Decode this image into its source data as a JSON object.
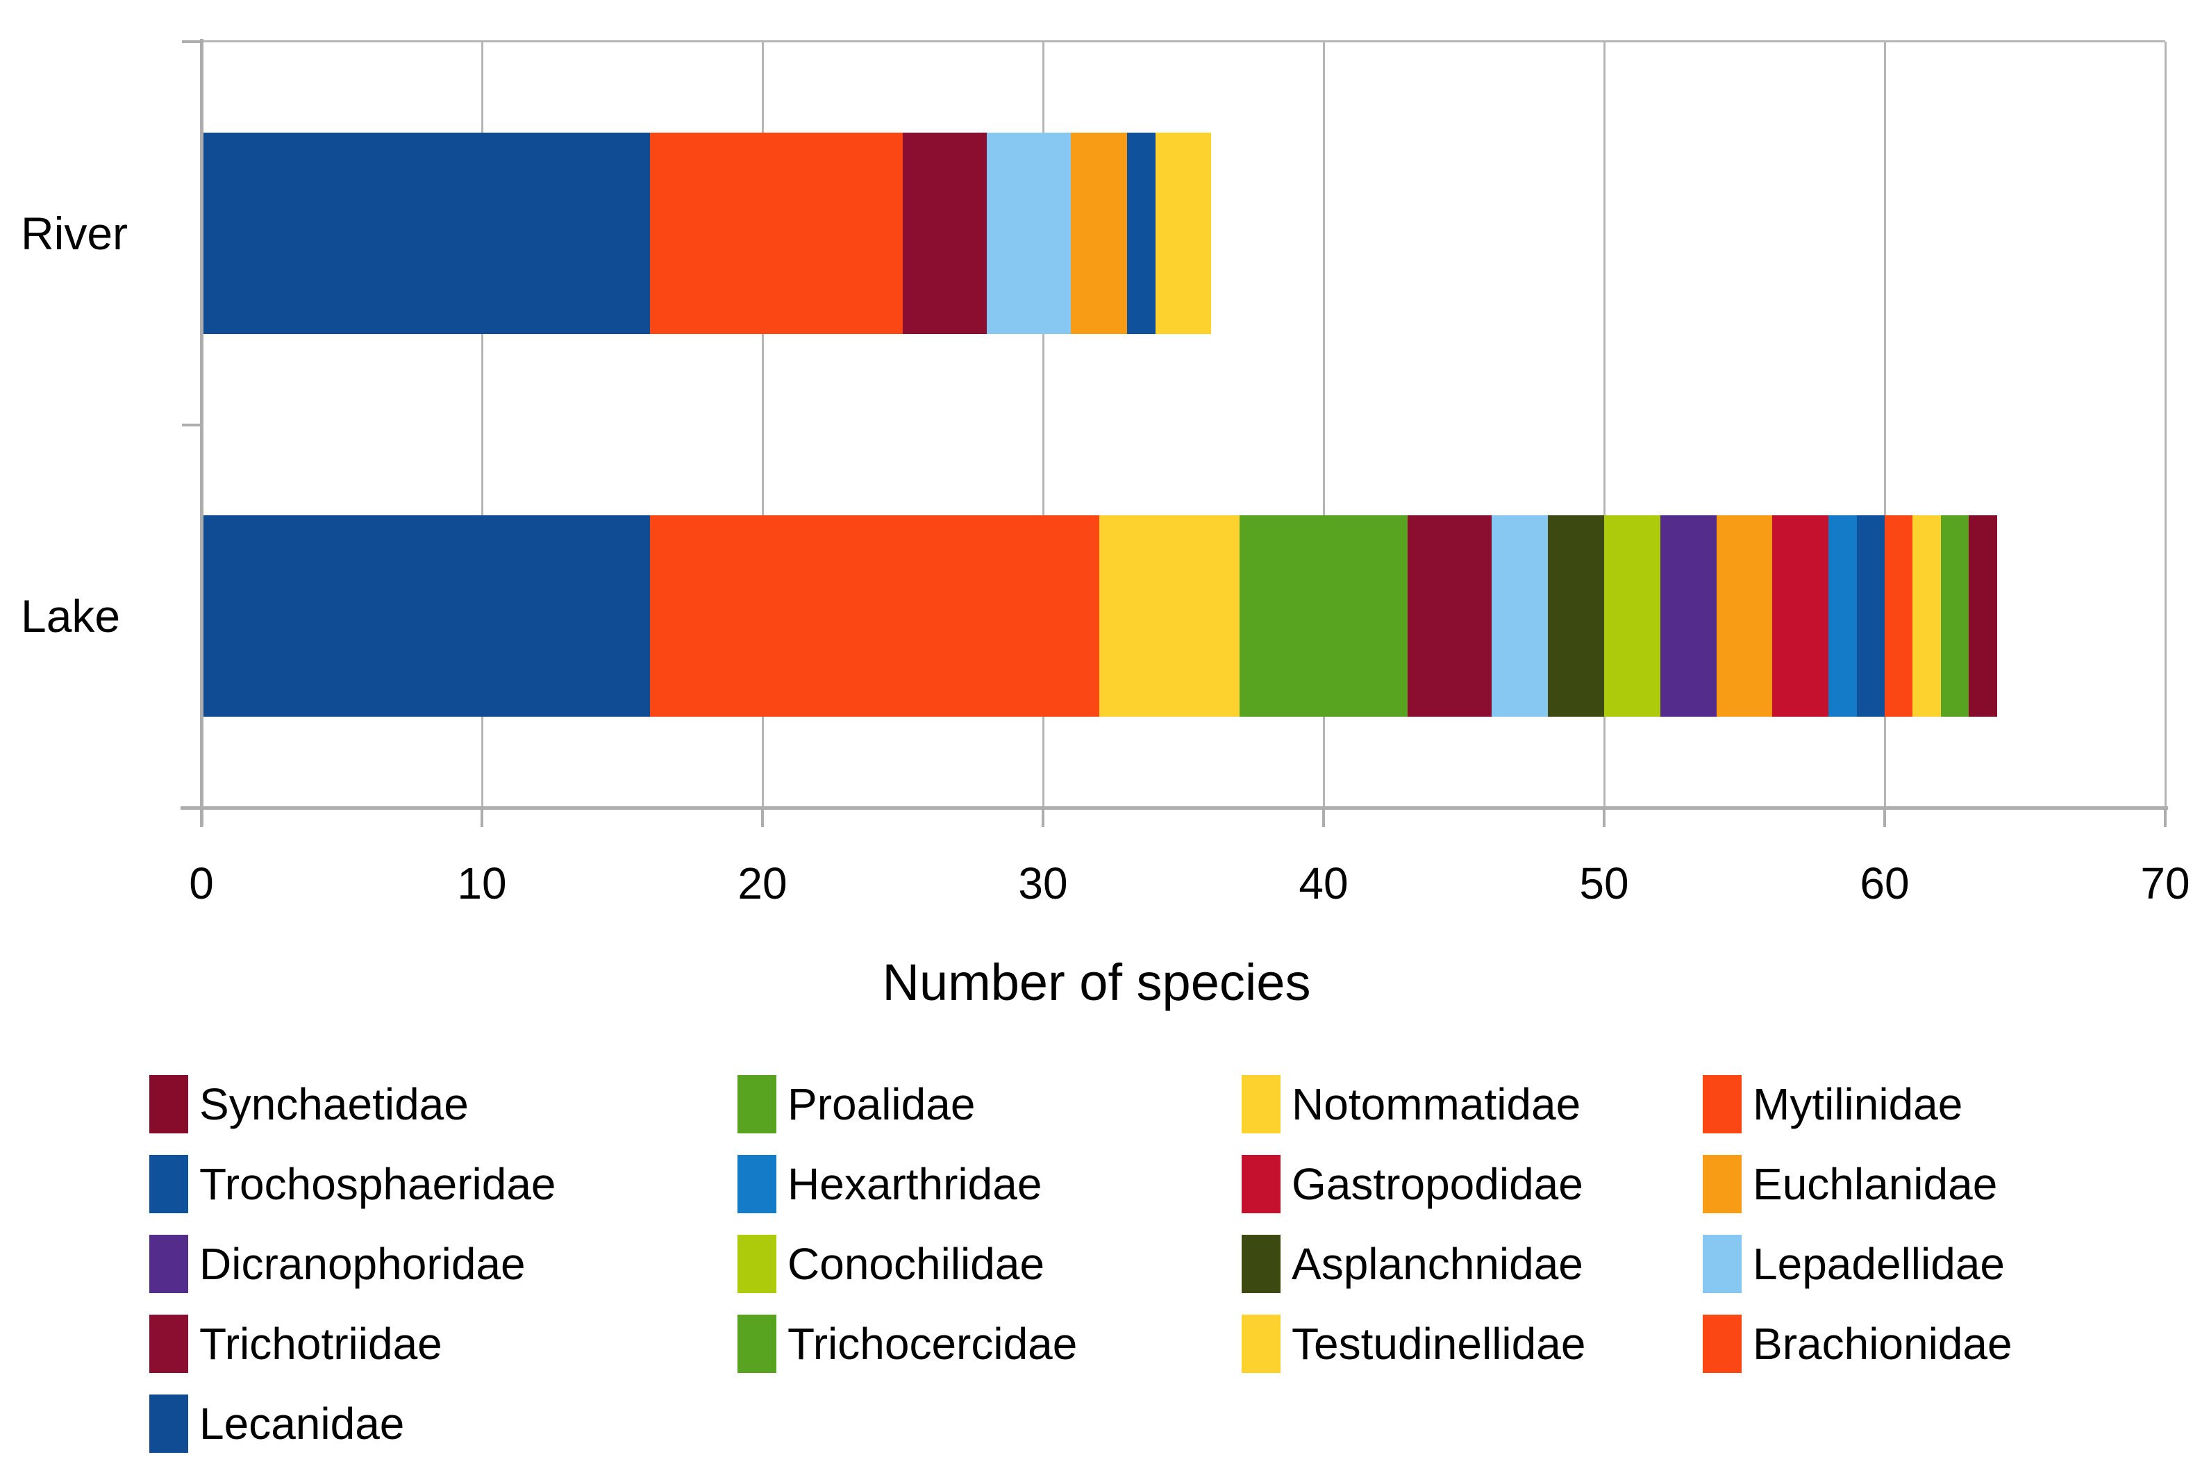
{
  "chart_data": {
    "type": "bar",
    "orientation": "horizontal",
    "stacked": true,
    "xlabel": "Number of species",
    "xlim": [
      0,
      70
    ],
    "xticks": [
      0,
      10,
      20,
      30,
      40,
      50,
      60,
      70
    ],
    "grid": "vertical",
    "legend_position": "bottom",
    "categories": [
      "River",
      "Lake"
    ],
    "series": [
      {
        "name": "Lecanidae",
        "color": "#0F4C94",
        "values": [
          16,
          16
        ]
      },
      {
        "name": "Brachionidae",
        "color": "#FB4713",
        "values": [
          9,
          16
        ]
      },
      {
        "name": "Testudinellidae",
        "color": "#FDD22E",
        "values": [
          0,
          5
        ]
      },
      {
        "name": "Trichocercidae",
        "color": "#58A320",
        "values": [
          0,
          6
        ]
      },
      {
        "name": "Trichotriidae",
        "color": "#8B0E31",
        "values": [
          3,
          3
        ]
      },
      {
        "name": "Lepadellidae",
        "color": "#87C8F2",
        "values": [
          3,
          2
        ]
      },
      {
        "name": "Asplanchnidae",
        "color": "#3C4A12",
        "values": [
          0,
          2
        ]
      },
      {
        "name": "Conochilidae",
        "color": "#AECB0B",
        "values": [
          0,
          2
        ]
      },
      {
        "name": "Dicranophoridae",
        "color": "#542C8C",
        "values": [
          0,
          2
        ]
      },
      {
        "name": "Euchlanidae",
        "color": "#F99C15",
        "values": [
          2,
          2
        ]
      },
      {
        "name": "Gastropodidae",
        "color": "#C6112E",
        "values": [
          0,
          2
        ]
      },
      {
        "name": "Hexarthridae",
        "color": "#147BC9",
        "values": [
          0,
          1
        ]
      },
      {
        "name": "Trochosphaeridae",
        "color": "#10519B",
        "values": [
          1,
          1
        ]
      },
      {
        "name": "Mytilinidae",
        "color": "#FB4713",
        "values": [
          0,
          1
        ]
      },
      {
        "name": "Notommatidae",
        "color": "#FDD22E",
        "values": [
          2,
          1
        ]
      },
      {
        "name": "Proalidae",
        "color": "#58A320",
        "values": [
          0,
          1
        ]
      },
      {
        "name": "Synchaetidae",
        "color": "#870C2B",
        "values": [
          0,
          1
        ]
      }
    ]
  },
  "legend": {
    "order": [
      "Synchaetidae",
      "Proalidae",
      "Notommatidae",
      "Mytilinidae",
      "Trochosphaeridae",
      "Hexarthridae",
      "Gastropodidae",
      "Euchlanidae",
      "Dicranophoridae",
      "Conochilidae",
      "Asplanchnidae",
      "Lepadellidae",
      "Trichotriidae",
      "Trichocercidae",
      "Testudinellidae",
      "Brachionidae",
      "Lecanidae"
    ]
  }
}
